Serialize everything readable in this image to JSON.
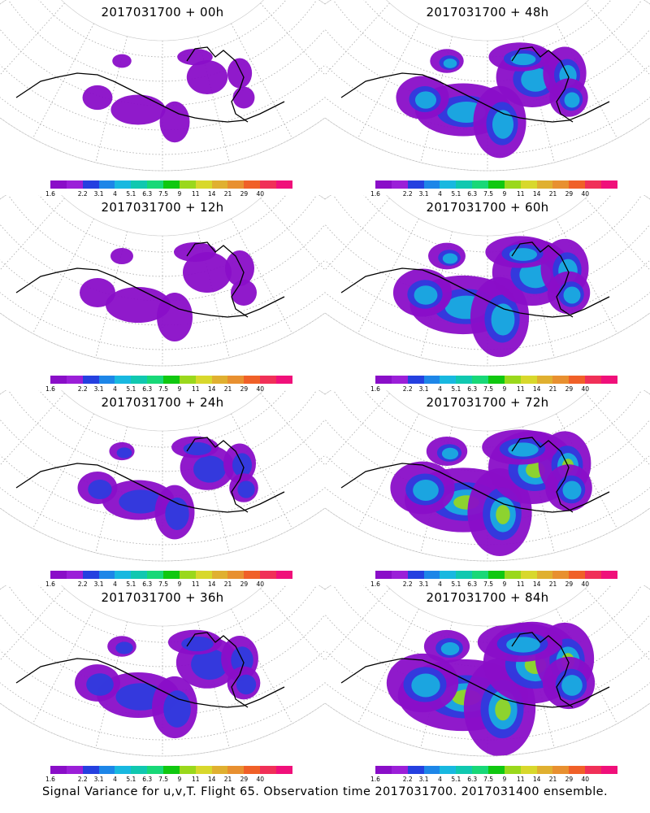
{
  "footer": "Signal Variance for u,v,T. Flight 65. Observation time 2017031700. 2017031400 ensemble.",
  "colorbar": {
    "colors": [
      "#8a0ec8",
      "#9b1fd8",
      "#2540e0",
      "#1d86e8",
      "#18b8e0",
      "#10c8b0",
      "#18d878",
      "#10c810",
      "#9ad81c",
      "#d8d82c",
      "#e0b030",
      "#e89030",
      "#f06028",
      "#f03058",
      "#f0107a"
    ],
    "labels": [
      "1.6",
      "2.2",
      "3.1",
      "4",
      "5.1",
      "6.3",
      "7.5",
      "9",
      "11",
      "14",
      "21",
      "29",
      "40"
    ]
  },
  "panels": [
    {
      "title": "2017031700 + 00h",
      "intensity": 0.15
    },
    {
      "title": "2017031700 + 48h",
      "intensity": 0.55
    },
    {
      "title": "2017031700 + 12h",
      "intensity": 0.25
    },
    {
      "title": "2017031700 + 60h",
      "intensity": 0.65
    },
    {
      "title": "2017031700 + 24h",
      "intensity": 0.32
    },
    {
      "title": "2017031700 + 72h",
      "intensity": 0.75
    },
    {
      "title": "2017031700 + 36h",
      "intensity": 0.42
    },
    {
      "title": "2017031700 + 84h",
      "intensity": 0.88
    }
  ]
}
